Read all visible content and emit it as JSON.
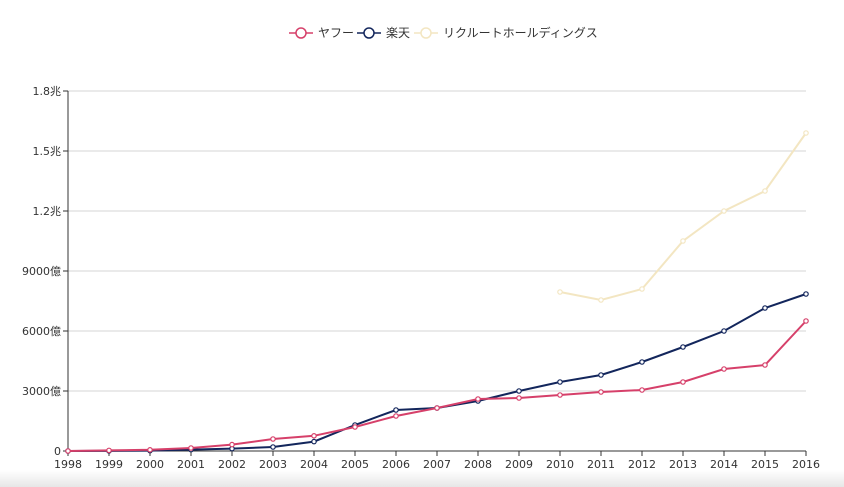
{
  "chart_data": {
    "type": "line",
    "title": "",
    "xlabel": "",
    "ylabel": "",
    "x": [
      1998,
      1999,
      2000,
      2001,
      2002,
      2003,
      2004,
      2005,
      2006,
      2007,
      2008,
      2009,
      2010,
      2011,
      2012,
      2013,
      2014,
      2015,
      2016
    ],
    "x_tick_labels": [
      "1998",
      "1999",
      "2000",
      "2001",
      "2002",
      "2003",
      "2004",
      "2005",
      "2006",
      "2007",
      "2008",
      "2009",
      "2010",
      "2011",
      "2012",
      "2013",
      "2014",
      "2015",
      "2016"
    ],
    "ylim": [
      0,
      18000
    ],
    "y_ticks": [
      0,
      3000,
      6000,
      9000,
      12000,
      15000,
      18000
    ],
    "y_tick_labels": [
      "0",
      "3000億",
      "6000億",
      "9000億",
      "1.2兆",
      "1.5兆",
      "1.8兆"
    ],
    "grid": true,
    "legend_position": "top-center",
    "series": [
      {
        "name": "ヤフー",
        "color": "#d6406a",
        "values": [
          0,
          30,
          60,
          150,
          320,
          600,
          760,
          1200,
          1750,
          2150,
          2600,
          2650,
          2800,
          2950,
          3050,
          3450,
          4100,
          4300,
          6500
        ]
      },
      {
        "name": "楽天",
        "color": "#13265c",
        "values": [
          0,
          5,
          20,
          70,
          120,
          200,
          470,
          1300,
          2050,
          2150,
          2500,
          3000,
          3450,
          3800,
          4450,
          5200,
          6000,
          7150,
          7850
        ]
      },
      {
        "name": "リクルートホールディングス",
        "color": "#f3e6c2",
        "values": [
          null,
          null,
          null,
          null,
          null,
          null,
          null,
          null,
          null,
          null,
          null,
          null,
          7950,
          7550,
          8100,
          10500,
          12000,
          13000,
          15900
        ]
      }
    ]
  }
}
